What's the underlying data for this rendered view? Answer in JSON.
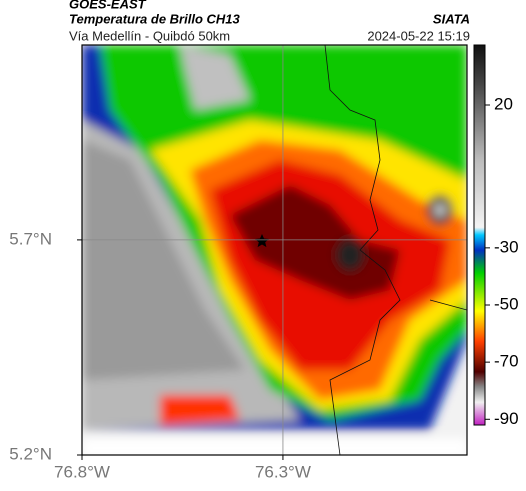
{
  "header": {
    "source": "GOES-EAST",
    "title": "Temperatura de Brillo CH13",
    "agency": "SIATA",
    "subtitle": "Vía Medellín - Quibdó 50km",
    "datetime": "2024-05-22 15:19"
  },
  "map": {
    "xlim": [
      -76.8,
      -75.842
    ],
    "ylim": [
      5.2,
      6.153
    ],
    "xticks": [
      {
        "value": -76.8,
        "label": "76.8°W"
      },
      {
        "value": -76.3,
        "label": "76.3°W"
      }
    ],
    "yticks": [
      {
        "value": 5.2,
        "label": "5.2°N"
      },
      {
        "value": 5.7,
        "label": "5.7°N"
      }
    ],
    "grid": true
  },
  "colorbar": {
    "lim": [
      41,
      -92
    ],
    "ticks": [
      20,
      -30,
      -50,
      -70,
      -90
    ]
  }
}
